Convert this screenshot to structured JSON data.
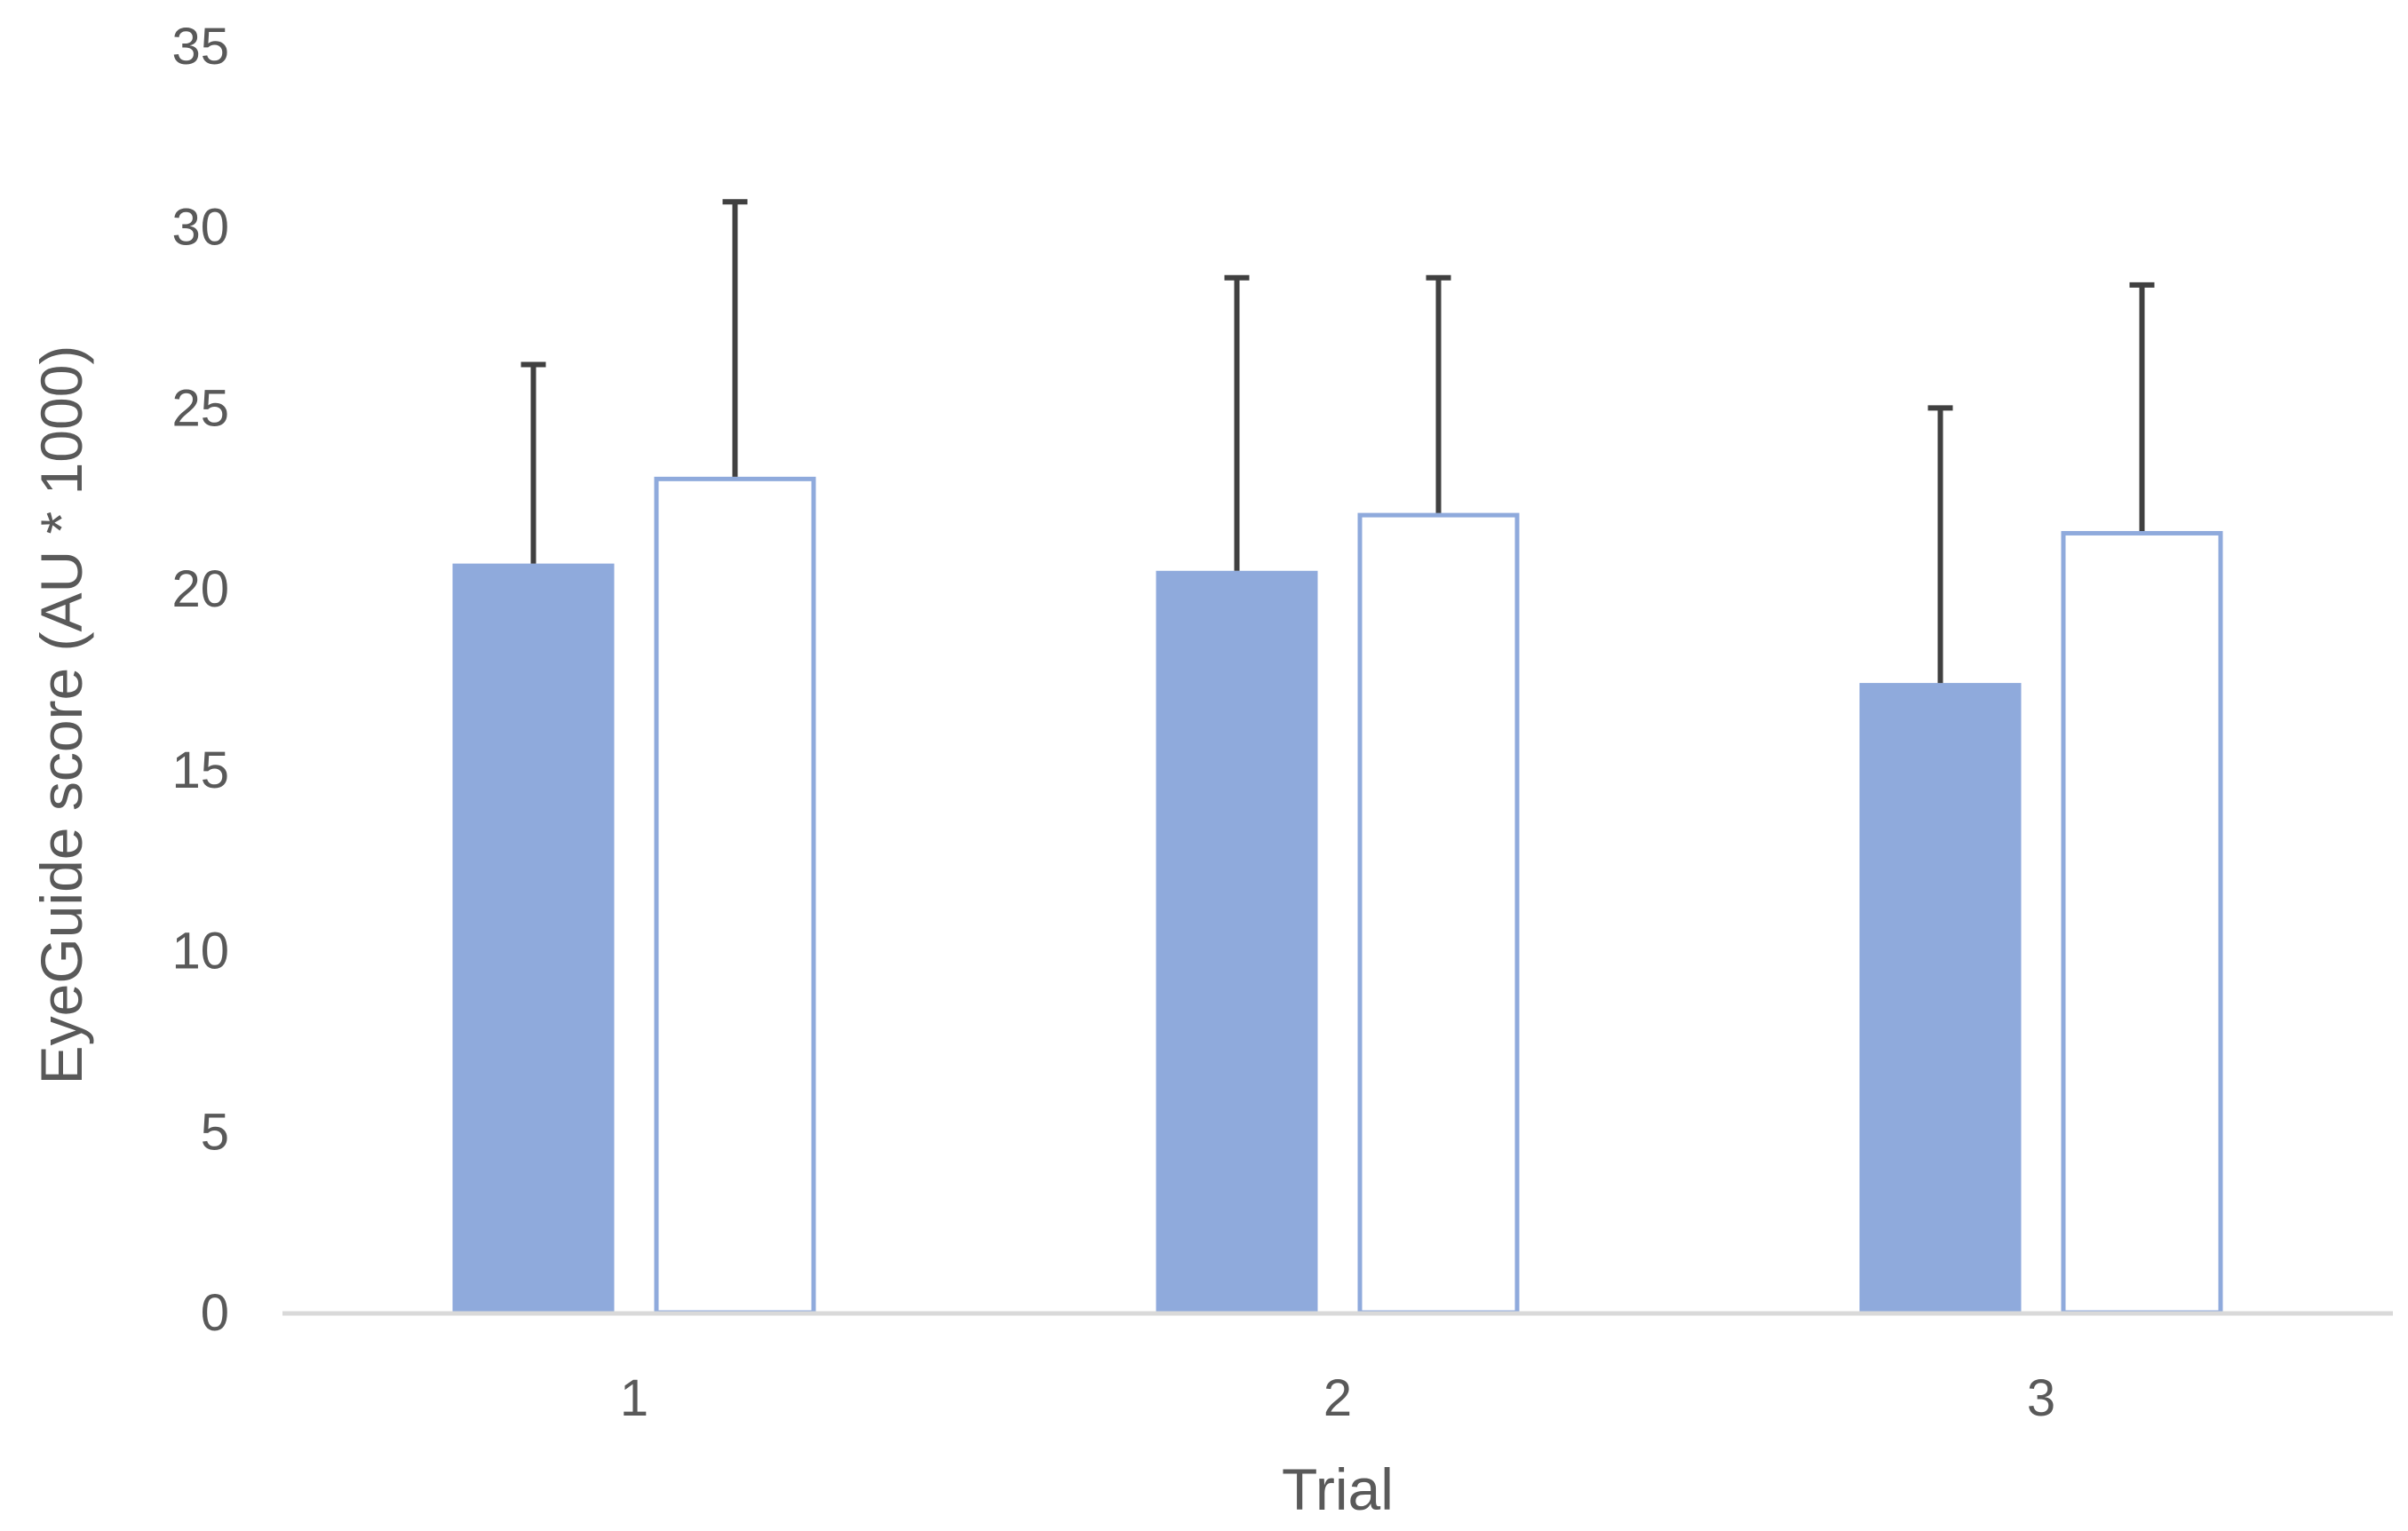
{
  "chart_data": {
    "type": "bar",
    "title": "",
    "xlabel": "Trial",
    "ylabel": "EyeGuide score (AU * 1000)",
    "categories": [
      "1",
      "2",
      "3"
    ],
    "ylim": [
      0,
      35
    ],
    "yticks": [
      0,
      5,
      10,
      15,
      20,
      25,
      30,
      35
    ],
    "grid": false,
    "legend": "none",
    "series": [
      {
        "values": [
          20.7,
          20.5,
          17.4
        ],
        "error_plus": [
          5.5,
          8.1,
          7.6
        ],
        "style": "filled",
        "color": "#8FAADC"
      },
      {
        "values": [
          23.1,
          22.1,
          21.6
        ],
        "error_plus": [
          7.6,
          6.5,
          6.8
        ],
        "style": "outline",
        "color": "#8FAADC"
      }
    ],
    "error_bar_color": "#404040",
    "axis_color": "#D9D9D9"
  }
}
